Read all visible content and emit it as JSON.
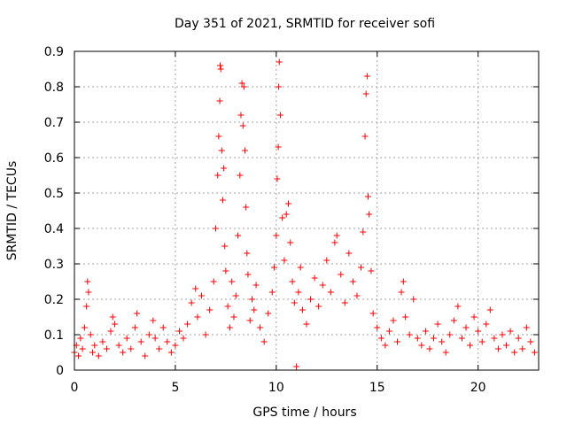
{
  "chart_data": {
    "type": "scatter",
    "title": "Day 351 of 2021, SRMTID for receiver sofi",
    "xlabel": "GPS time / hours",
    "ylabel": "SRMTID / TECUs",
    "xlim": [
      0,
      23
    ],
    "ylim": [
      0,
      0.9
    ],
    "xticks": [
      0,
      5,
      10,
      15,
      20
    ],
    "yticks": [
      0,
      0.1,
      0.2,
      0.3,
      0.4,
      0.5,
      0.6,
      0.7,
      0.8,
      0.9
    ],
    "xtick_labels": [
      "0",
      "5",
      "10",
      "15",
      "20"
    ],
    "ytick_labels": [
      "0",
      "0.1",
      "0.2",
      "0.3",
      "0.4",
      "0.5",
      "0.6",
      "0.7",
      "0.8",
      "0.9"
    ],
    "grid": true,
    "marker": "+",
    "color": "#ff0000",
    "series": [
      {
        "name": "SRMTID",
        "points": [
          [
            0.0,
            0.05
          ],
          [
            0.1,
            0.07
          ],
          [
            0.2,
            0.04
          ],
          [
            0.3,
            0.09
          ],
          [
            0.4,
            0.06
          ],
          [
            0.5,
            0.12
          ],
          [
            0.6,
            0.18
          ],
          [
            0.65,
            0.25
          ],
          [
            0.7,
            0.22
          ],
          [
            0.8,
            0.1
          ],
          [
            0.9,
            0.05
          ],
          [
            1.0,
            0.07
          ],
          [
            1.2,
            0.04
          ],
          [
            1.4,
            0.08
          ],
          [
            1.6,
            0.06
          ],
          [
            1.8,
            0.11
          ],
          [
            1.9,
            0.15
          ],
          [
            2.0,
            0.13
          ],
          [
            2.2,
            0.07
          ],
          [
            2.4,
            0.05
          ],
          [
            2.6,
            0.09
          ],
          [
            2.8,
            0.06
          ],
          [
            3.0,
            0.12
          ],
          [
            3.1,
            0.16
          ],
          [
            3.3,
            0.08
          ],
          [
            3.5,
            0.04
          ],
          [
            3.7,
            0.1
          ],
          [
            3.9,
            0.14
          ],
          [
            4.0,
            0.09
          ],
          [
            4.2,
            0.06
          ],
          [
            4.4,
            0.12
          ],
          [
            4.6,
            0.08
          ],
          [
            4.8,
            0.05
          ],
          [
            5.0,
            0.07
          ],
          [
            5.2,
            0.11
          ],
          [
            5.4,
            0.09
          ],
          [
            5.6,
            0.13
          ],
          [
            5.8,
            0.19
          ],
          [
            6.0,
            0.23
          ],
          [
            6.1,
            0.15
          ],
          [
            6.3,
            0.21
          ],
          [
            6.5,
            0.1
          ],
          [
            6.7,
            0.17
          ],
          [
            6.9,
            0.25
          ],
          [
            7.0,
            0.4
          ],
          [
            7.1,
            0.55
          ],
          [
            7.15,
            0.66
          ],
          [
            7.2,
            0.76
          ],
          [
            7.22,
            0.86
          ],
          [
            7.25,
            0.85
          ],
          [
            7.3,
            0.62
          ],
          [
            7.35,
            0.48
          ],
          [
            7.4,
            0.57
          ],
          [
            7.45,
            0.35
          ],
          [
            7.5,
            0.28
          ],
          [
            7.6,
            0.18
          ],
          [
            7.7,
            0.12
          ],
          [
            7.8,
            0.25
          ],
          [
            7.9,
            0.15
          ],
          [
            8.0,
            0.21
          ],
          [
            8.1,
            0.38
          ],
          [
            8.2,
            0.55
          ],
          [
            8.25,
            0.72
          ],
          [
            8.3,
            0.81
          ],
          [
            8.35,
            0.69
          ],
          [
            8.4,
            0.8
          ],
          [
            8.45,
            0.62
          ],
          [
            8.5,
            0.46
          ],
          [
            8.55,
            0.33
          ],
          [
            8.6,
            0.27
          ],
          [
            8.7,
            0.14
          ],
          [
            8.8,
            0.2
          ],
          [
            8.9,
            0.17
          ],
          [
            9.0,
            0.24
          ],
          [
            9.2,
            0.12
          ],
          [
            9.4,
            0.08
          ],
          [
            9.6,
            0.16
          ],
          [
            9.8,
            0.22
          ],
          [
            9.9,
            0.29
          ],
          [
            10.0,
            0.38
          ],
          [
            10.05,
            0.54
          ],
          [
            10.1,
            0.63
          ],
          [
            10.12,
            0.8
          ],
          [
            10.15,
            0.87
          ],
          [
            10.2,
            0.72
          ],
          [
            10.3,
            0.43
          ],
          [
            10.4,
            0.31
          ],
          [
            10.5,
            0.44
          ],
          [
            10.6,
            0.47
          ],
          [
            10.7,
            0.36
          ],
          [
            10.8,
            0.25
          ],
          [
            10.9,
            0.19
          ],
          [
            11.0,
            0.01
          ],
          [
            11.1,
            0.22
          ],
          [
            11.2,
            0.29
          ],
          [
            11.3,
            0.17
          ],
          [
            11.5,
            0.13
          ],
          [
            11.7,
            0.2
          ],
          [
            11.9,
            0.26
          ],
          [
            12.1,
            0.18
          ],
          [
            12.3,
            0.24
          ],
          [
            12.5,
            0.31
          ],
          [
            12.7,
            0.22
          ],
          [
            12.9,
            0.36
          ],
          [
            13.0,
            0.38
          ],
          [
            13.2,
            0.27
          ],
          [
            13.4,
            0.19
          ],
          [
            13.6,
            0.33
          ],
          [
            13.8,
            0.25
          ],
          [
            14.0,
            0.21
          ],
          [
            14.2,
            0.29
          ],
          [
            14.3,
            0.39
          ],
          [
            14.4,
            0.66
          ],
          [
            14.45,
            0.78
          ],
          [
            14.5,
            0.83
          ],
          [
            14.55,
            0.49
          ],
          [
            14.6,
            0.44
          ],
          [
            14.7,
            0.28
          ],
          [
            14.8,
            0.16
          ],
          [
            15.0,
            0.12
          ],
          [
            15.2,
            0.09
          ],
          [
            15.4,
            0.07
          ],
          [
            15.6,
            0.11
          ],
          [
            15.8,
            0.14
          ],
          [
            16.0,
            0.08
          ],
          [
            16.2,
            0.22
          ],
          [
            16.3,
            0.25
          ],
          [
            16.4,
            0.15
          ],
          [
            16.6,
            0.1
          ],
          [
            16.8,
            0.2
          ],
          [
            17.0,
            0.09
          ],
          [
            17.2,
            0.07
          ],
          [
            17.4,
            0.11
          ],
          [
            17.6,
            0.06
          ],
          [
            17.8,
            0.09
          ],
          [
            18.0,
            0.13
          ],
          [
            18.2,
            0.08
          ],
          [
            18.4,
            0.05
          ],
          [
            18.6,
            0.1
          ],
          [
            18.8,
            0.14
          ],
          [
            19.0,
            0.18
          ],
          [
            19.2,
            0.09
          ],
          [
            19.4,
            0.12
          ],
          [
            19.6,
            0.07
          ],
          [
            19.8,
            0.15
          ],
          [
            20.0,
            0.11
          ],
          [
            20.2,
            0.08
          ],
          [
            20.4,
            0.13
          ],
          [
            20.6,
            0.17
          ],
          [
            20.8,
            0.09
          ],
          [
            21.0,
            0.06
          ],
          [
            21.2,
            0.1
          ],
          [
            21.4,
            0.07
          ],
          [
            21.6,
            0.11
          ],
          [
            21.8,
            0.05
          ],
          [
            22.0,
            0.09
          ],
          [
            22.2,
            0.06
          ],
          [
            22.4,
            0.12
          ],
          [
            22.6,
            0.08
          ],
          [
            22.8,
            0.05
          ]
        ]
      }
    ]
  }
}
